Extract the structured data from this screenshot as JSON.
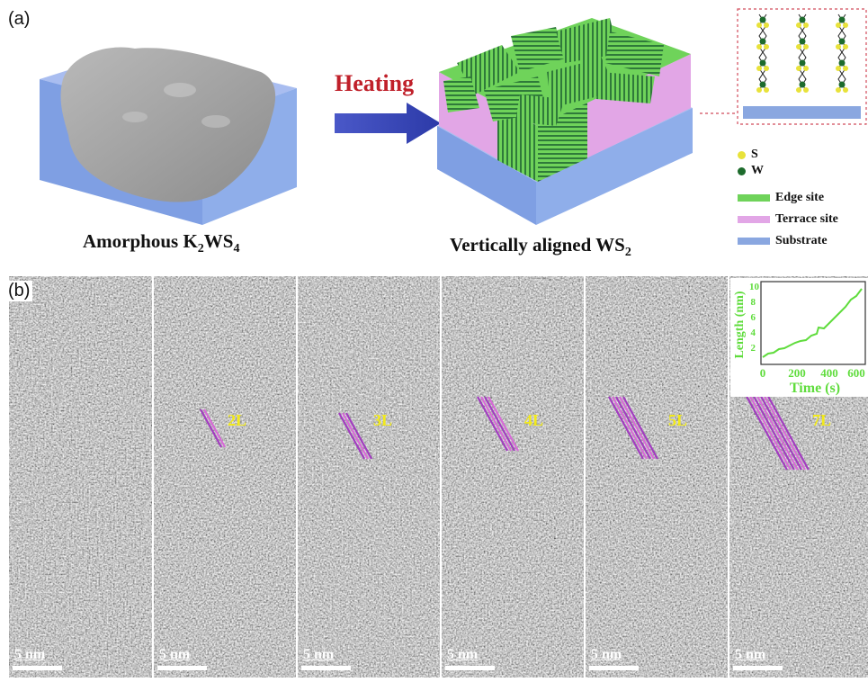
{
  "panel_a": {
    "label": "(a)",
    "arrow_text": "Heating",
    "left_caption": {
      "prefix": "Amorphous K",
      "sub1": "2",
      "mid": "WS",
      "sub2": "4"
    },
    "right_caption": {
      "prefix": "Vertically aligned WS",
      "sub": "2"
    },
    "legend": {
      "s": "S",
      "w": "W",
      "edge": "Edge site",
      "terrace": "Terrace site",
      "substrate": "Substrate"
    },
    "colors": {
      "edge": "#6fd35a",
      "terrace": "#e2a6e6",
      "substrate": "#8aa7e0",
      "s_atom": "#e8e23a",
      "w_atom": "#1d6b2c",
      "heating": "#c0202a"
    }
  },
  "panel_b": {
    "label": "(b)",
    "frames": [
      {
        "layer_label": "",
        "scale_label": "5 nm"
      },
      {
        "layer_label": "2L",
        "scale_label": "5 nm"
      },
      {
        "layer_label": "3L",
        "scale_label": "5 nm"
      },
      {
        "layer_label": "4L",
        "scale_label": "5 nm"
      },
      {
        "layer_label": "5L",
        "scale_label": "5 nm"
      },
      {
        "layer_label": "7L",
        "scale_label": "5 nm"
      }
    ],
    "inset": {
      "xlabel": "Time (s)",
      "ylabel": "Length (nm)",
      "xticks": [
        "0",
        "200",
        "400",
        "600"
      ],
      "yticks": [
        "2",
        "4",
        "6",
        "8",
        "10"
      ]
    }
  }
}
